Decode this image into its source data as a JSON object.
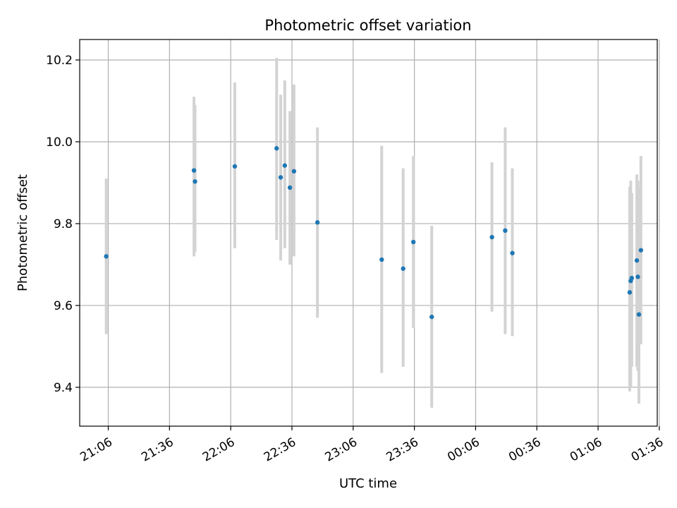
{
  "chart_data": {
    "type": "scatter",
    "title": "Photometric offset variation",
    "xlabel": "UTC time",
    "ylabel": "Photometric offset",
    "grid": true,
    "x_ticks": [
      "21:06",
      "21:36",
      "22:06",
      "22:36",
      "23:06",
      "23:36",
      "00:06",
      "00:36",
      "01:06",
      "01:36"
    ],
    "x_tick_minutes": [
      0,
      30,
      60,
      90,
      120,
      150,
      180,
      210,
      240,
      270
    ],
    "xlim_minutes": [
      -14,
      269
    ],
    "y_ticks": [
      9.4,
      9.6,
      9.8,
      10.0,
      10.2
    ],
    "ylim": [
      9.305,
      10.25
    ],
    "colors": {
      "point": "#1f77b4",
      "errorbar": "#d3d3d3",
      "grid": "#b0b0b0"
    },
    "series": [
      {
        "points": [
          {
            "t": -1.0,
            "y": 9.72,
            "lo": 9.53,
            "hi": 9.91
          },
          {
            "t": 42.0,
            "y": 9.93,
            "lo": 9.72,
            "hi": 10.11
          },
          {
            "t": 42.5,
            "y": 9.903,
            "lo": 9.73,
            "hi": 10.09
          },
          {
            "t": 62.0,
            "y": 9.94,
            "lo": 9.74,
            "hi": 10.145
          },
          {
            "t": 82.5,
            "y": 9.984,
            "lo": 9.76,
            "hi": 10.205
          },
          {
            "t": 84.5,
            "y": 9.913,
            "lo": 9.71,
            "hi": 10.115
          },
          {
            "t": 86.5,
            "y": 9.942,
            "lo": 9.74,
            "hi": 10.15
          },
          {
            "t": 89.0,
            "y": 9.888,
            "lo": 9.7,
            "hi": 10.075
          },
          {
            "t": 91.0,
            "y": 9.928,
            "lo": 9.72,
            "hi": 10.14
          },
          {
            "t": 102.5,
            "y": 9.803,
            "lo": 9.57,
            "hi": 10.035
          },
          {
            "t": 134.0,
            "y": 9.712,
            "lo": 9.435,
            "hi": 9.99
          },
          {
            "t": 144.5,
            "y": 9.69,
            "lo": 9.45,
            "hi": 9.935
          },
          {
            "t": 149.5,
            "y": 9.755,
            "lo": 9.545,
            "hi": 9.965
          },
          {
            "t": 158.5,
            "y": 9.572,
            "lo": 9.35,
            "hi": 9.795
          },
          {
            "t": 188.0,
            "y": 9.767,
            "lo": 9.585,
            "hi": 9.95
          },
          {
            "t": 194.5,
            "y": 9.783,
            "lo": 9.53,
            "hi": 10.035
          },
          {
            "t": 198.0,
            "y": 9.728,
            "lo": 9.525,
            "hi": 9.935
          },
          {
            "t": 255.5,
            "y": 9.632,
            "lo": 9.39,
            "hi": 9.89
          },
          {
            "t": 256.0,
            "y": 9.66,
            "lo": 9.4,
            "hi": 9.905
          },
          {
            "t": 256.5,
            "y": 9.667,
            "lo": 9.45,
            "hi": 9.875
          },
          {
            "t": 259.0,
            "y": 9.71,
            "lo": 9.45,
            "hi": 9.92
          },
          {
            "t": 259.5,
            "y": 9.67,
            "lo": 9.44,
            "hi": 9.905
          },
          {
            "t": 260.0,
            "y": 9.578,
            "lo": 9.36,
            "hi": 9.89
          },
          {
            "t": 261.0,
            "y": 9.735,
            "lo": 9.505,
            "hi": 9.965
          }
        ]
      }
    ]
  }
}
